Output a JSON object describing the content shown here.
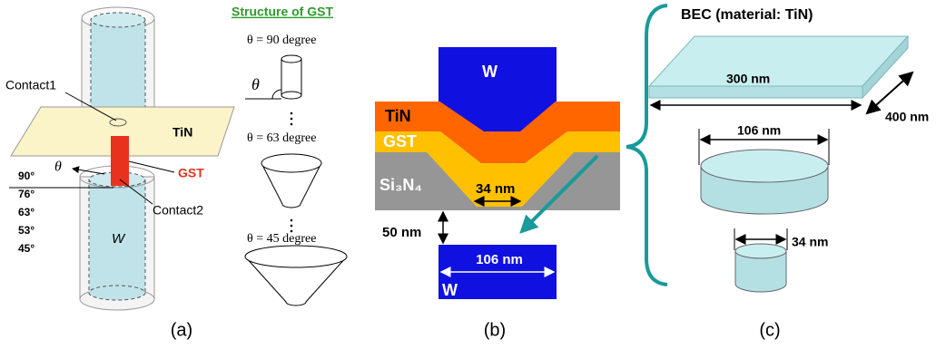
{
  "panel_a": {
    "structure_title": "Structure of GST",
    "theta_90": "θ = 90 degree",
    "theta_63": "θ = 63 degree",
    "theta_45": "θ = 45 degree",
    "small_theta": "θ",
    "contact1": "Contact1",
    "tin": "TiN",
    "gst": "GST",
    "contact2": "Contact2",
    "theta": "θ",
    "angles": [
      "90°",
      "76°",
      "63°",
      "53°",
      "45°"
    ],
    "electrode": "W",
    "caption": "(a)"
  },
  "panel_b": {
    "top_electrode": "W",
    "tin": "TiN",
    "gst": "GST",
    "si3n4": "Si₃N₄",
    "trench_width": "34 nm",
    "gap": "50 nm",
    "bottom_width": "106 nm",
    "bottom_electrode": "W",
    "caption": "(b)"
  },
  "panel_c": {
    "title": "BEC (material: TiN)",
    "length": "300 nm",
    "depth": "400 nm",
    "disk_diameter": "106 nm",
    "pillar_diameter": "34 nm",
    "caption": "(c)"
  }
}
